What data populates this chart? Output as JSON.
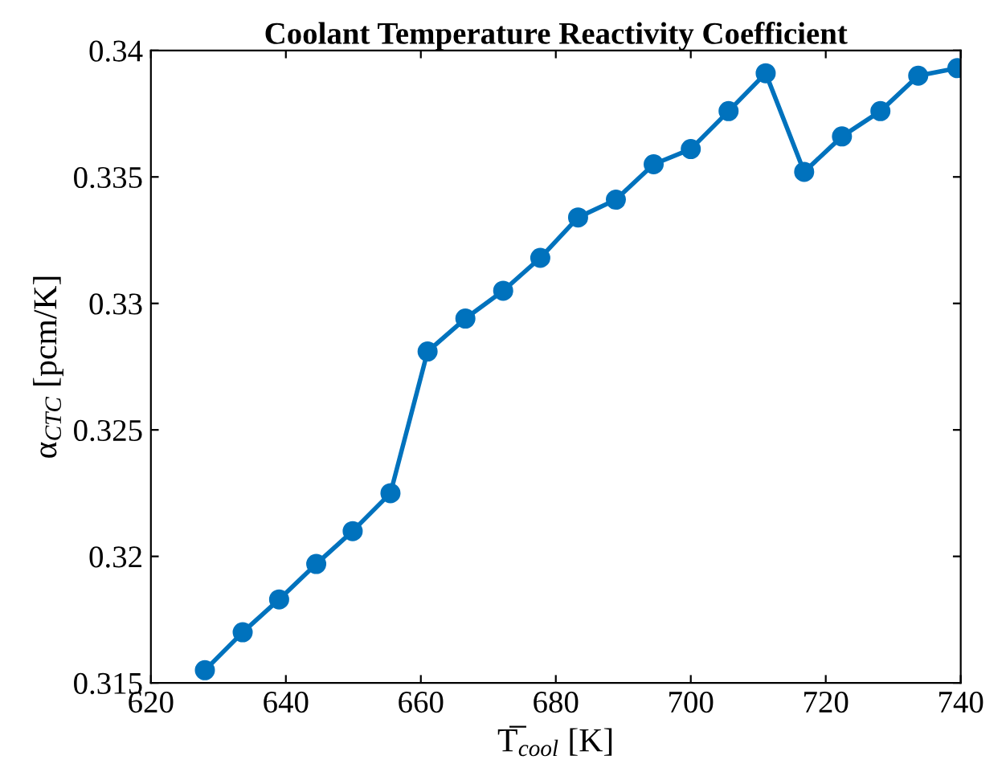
{
  "chart_data": {
    "type": "line",
    "title": "Coolant Temperature Reactivity Coefficient",
    "xlabel": "T̅$_{cool}$ [K]",
    "ylabel": "α$_{CTC}$ [pcm/K]",
    "x": [
      628.0,
      633.6,
      639.0,
      644.5,
      649.9,
      655.5,
      661.0,
      666.6,
      672.2,
      677.7,
      683.3,
      688.9,
      694.5,
      700.0,
      705.6,
      711.1,
      716.8,
      722.4,
      728.1,
      733.7,
      739.5
    ],
    "series": [
      {
        "color": "#0072bd",
        "values": [
          0.3155,
          0.317,
          0.3183,
          0.3197,
          0.321,
          0.3225,
          0.3281,
          0.3294,
          0.3305,
          0.3318,
          0.3334,
          0.3341,
          0.3355,
          0.3361,
          0.3376,
          0.3391,
          0.3352,
          0.3366,
          0.3376,
          0.339,
          0.3393
        ]
      }
    ],
    "xlim": [
      620,
      740
    ],
    "xticks": [
      620,
      640,
      660,
      680,
      700,
      720,
      740
    ],
    "ylim": [
      0.315,
      0.34
    ],
    "yticks": [
      0.315,
      0.32,
      0.325,
      0.33,
      0.335,
      0.34
    ],
    "grid": false,
    "legend": false,
    "marker": "circle",
    "line_style": "solid"
  }
}
